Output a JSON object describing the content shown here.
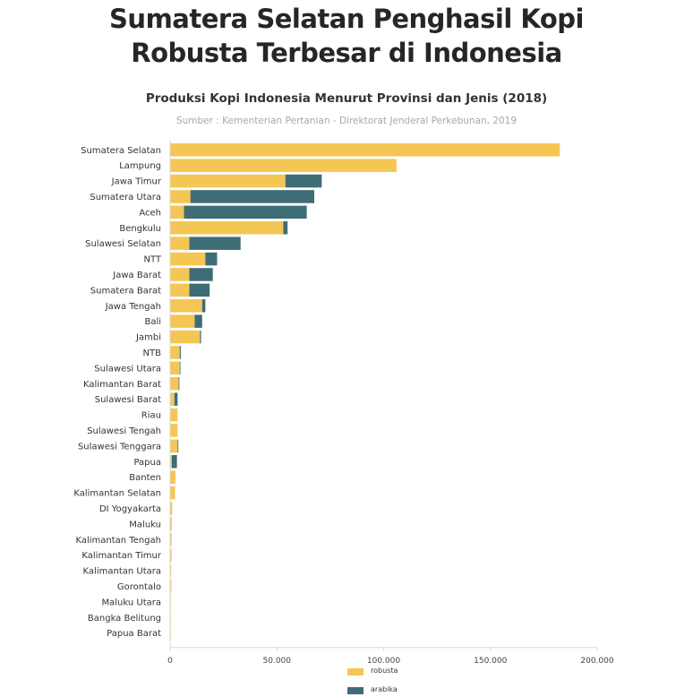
{
  "headline": {
    "line1": "Sumatera Selatan Penghasil Kopi",
    "line2": "Robusta Terbesar di Indonesia"
  },
  "colors": {
    "robusta": "#f4c653",
    "arabika": "#3e6d76",
    "axis": "#d8d8d8"
  },
  "chart_data": {
    "type": "bar",
    "orientation": "horizontal",
    "stacked": true,
    "title": "Produksi Kopi Indonesia Menurut Provinsi dan Jenis (2018)",
    "subtitle": "Sumber : Kementerian Pertanian - Direktorat Jenderal Perkebunan, 2019",
    "xlim": [
      0,
      200000
    ],
    "x_ticks": [
      0,
      50000,
      100000,
      150000,
      200000
    ],
    "x_tick_labels": [
      "0",
      "50.000",
      "100.000",
      "150.000",
      "200.000"
    ],
    "grid": false,
    "legend_position": "bottom-center",
    "categories": [
      "Sumatera Selatan",
      "Lampung",
      "Jawa Timur",
      "Sumatera Utara",
      "Aceh",
      "Bengkulu",
      "Sulawesi Selatan",
      "NTT",
      "Jawa Barat",
      "Sumatera Barat",
      "Jawa Tengah",
      "Bali",
      "Jambi",
      "NTB",
      "Sulawesi Utara",
      "Kalimantan Barat",
      "Sulawesi Barat",
      "Riau",
      "Sulawesi Tengah",
      "Sulawesi Tenggara",
      "Papua",
      "Banten",
      "Kalimantan Selatan",
      "DI Yogyakarta",
      "Maluku",
      "Kalimantan Tengah",
      "Kalimantan Timur",
      "Kalimantan Utara",
      "Gorontalo",
      "Maluku Utara",
      "Bangka Belitung",
      "Papua Barat"
    ],
    "series": [
      {
        "name": "robusta",
        "values": [
          182500,
          106000,
          54000,
          9500,
          6500,
          53000,
          9000,
          16500,
          9000,
          9000,
          15000,
          11500,
          14000,
          4500,
          4500,
          4000,
          2000,
          3500,
          3500,
          3500,
          800,
          2500,
          2300,
          1000,
          800,
          700,
          700,
          500,
          600,
          300,
          200,
          200
        ]
      },
      {
        "name": "arabika",
        "values": [
          0,
          0,
          17000,
          58000,
          57500,
          2000,
          24000,
          5500,
          11000,
          9500,
          1500,
          3500,
          500,
          500,
          100,
          100,
          1500,
          0,
          0,
          100,
          2400,
          0,
          0,
          0,
          0,
          0,
          0,
          0,
          0,
          0,
          0,
          0
        ]
      }
    ]
  }
}
